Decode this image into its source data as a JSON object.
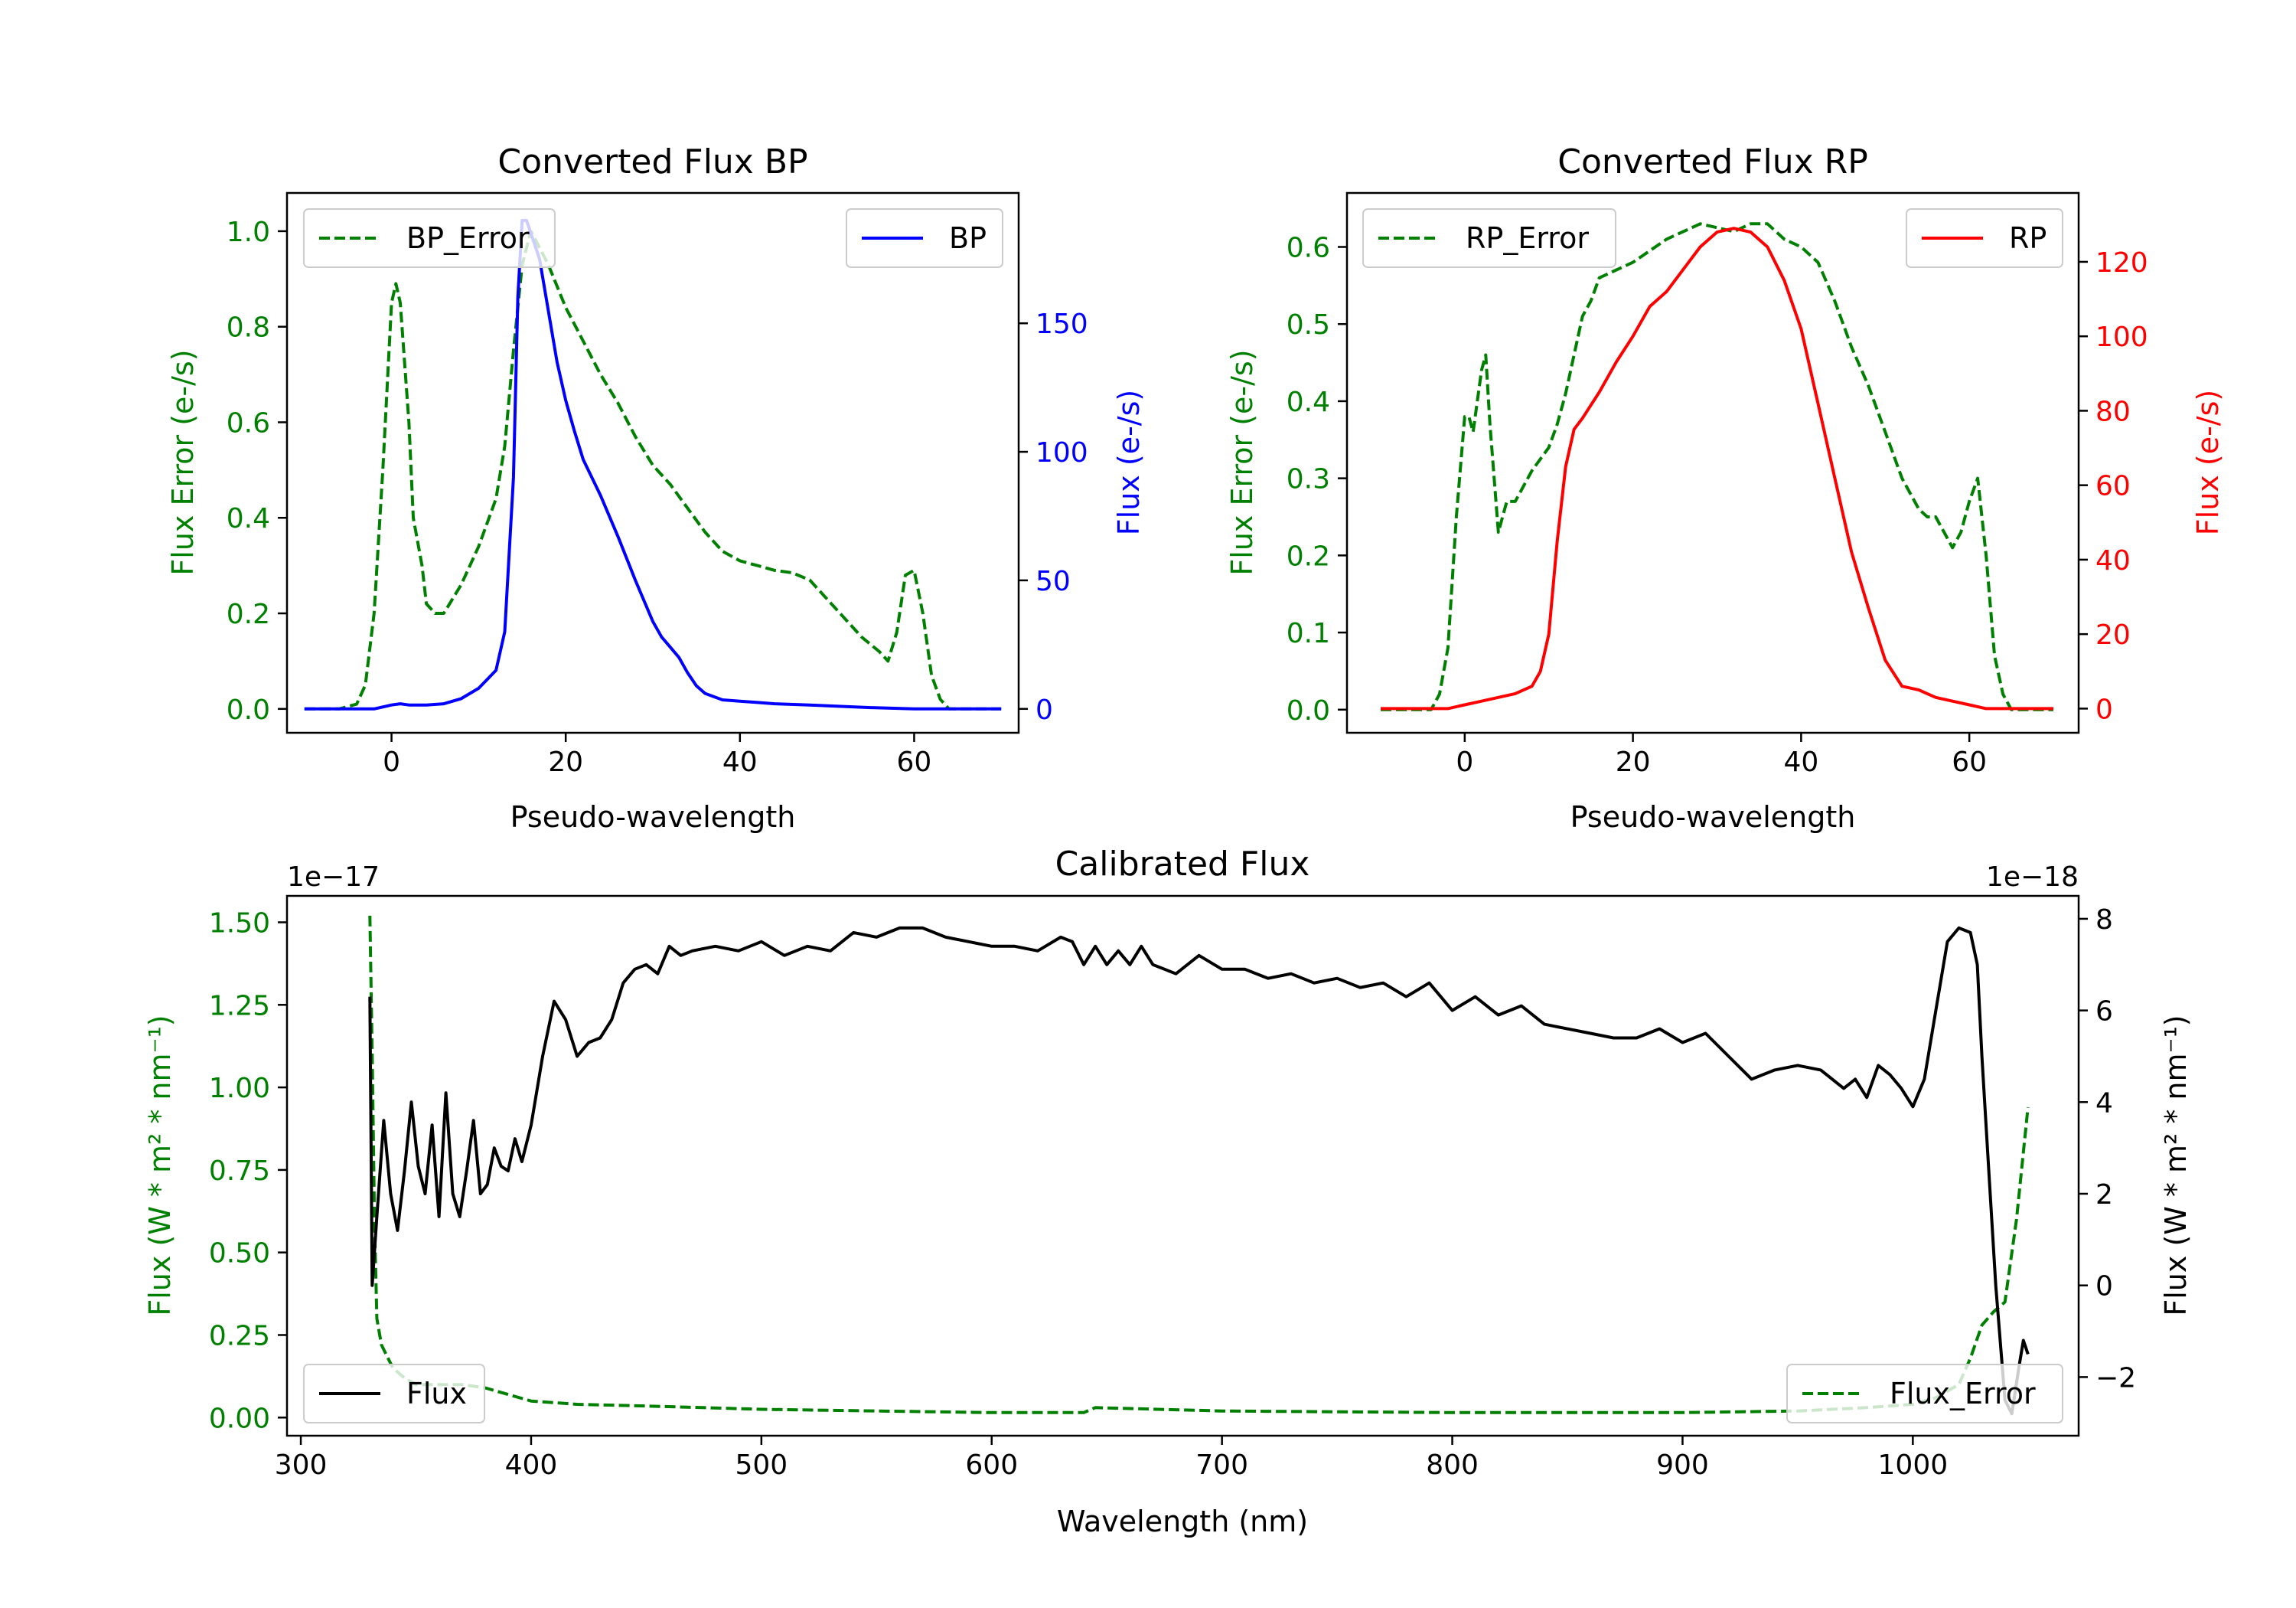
{
  "chart_data": [
    {
      "id": "bp",
      "type": "line",
      "title": "Converted Flux BP",
      "xlabel": "Pseudo-wavelength",
      "ylabel_left": "Flux Error (e-/s)",
      "ylabel_right": "Flux (e-/s)",
      "xlim": [
        -12,
        72
      ],
      "ylim_left": [
        -0.05,
        1.08
      ],
      "ylim_right": [
        -9.3,
        200.7
      ],
      "xticks": [
        0,
        20,
        40,
        60
      ],
      "yticks_left": [
        0.0,
        0.2,
        0.4,
        0.6,
        0.8,
        1.0
      ],
      "ytick_labels_left": [
        "0.0",
        "0.2",
        "0.4",
        "0.6",
        "0.8",
        "1.0"
      ],
      "yticks_right": [
        0,
        50,
        100,
        150
      ],
      "ytick_labels_right": [
        "0",
        "50",
        "100",
        "150"
      ],
      "left_color": "#008000",
      "right_color": "#0000ff",
      "series": [
        {
          "name": "BP_Error",
          "axis": "left",
          "style": "dashed",
          "color": "#008000",
          "x": [
            -10,
            -6,
            -4,
            -3,
            -2,
            -1,
            0,
            0.5,
            1,
            2,
            2.5,
            3,
            3.5,
            4,
            5,
            6,
            8,
            10,
            12,
            13,
            14,
            15,
            16,
            18,
            20,
            22,
            24,
            26,
            28,
            30,
            32,
            34,
            36,
            38,
            40,
            42,
            44,
            46,
            48,
            50,
            52,
            54,
            56,
            57,
            58,
            59,
            60,
            61,
            62,
            63,
            64,
            65,
            70
          ],
          "y": [
            0,
            0,
            0.01,
            0.05,
            0.2,
            0.5,
            0.85,
            0.89,
            0.85,
            0.6,
            0.4,
            0.35,
            0.3,
            0.22,
            0.2,
            0.2,
            0.26,
            0.34,
            0.44,
            0.55,
            0.75,
            0.93,
            1.0,
            0.93,
            0.84,
            0.77,
            0.7,
            0.64,
            0.57,
            0.51,
            0.47,
            0.42,
            0.37,
            0.33,
            0.31,
            0.3,
            0.29,
            0.285,
            0.27,
            0.23,
            0.19,
            0.15,
            0.12,
            0.1,
            0.16,
            0.28,
            0.29,
            0.2,
            0.07,
            0.02,
            0,
            0,
            0
          ]
        },
        {
          "name": "BP",
          "axis": "right",
          "style": "solid",
          "color": "#0000ff",
          "x": [
            -10,
            -5,
            -2,
            0,
            1,
            2,
            4,
            6,
            8,
            10,
            12,
            13,
            14,
            14.5,
            15,
            15.5,
            16,
            17,
            18,
            19,
            20,
            21,
            22,
            24,
            26,
            28,
            30,
            31,
            32,
            33,
            34,
            35,
            36,
            38,
            40,
            42,
            44,
            48,
            55,
            60,
            65,
            70
          ],
          "y": [
            0,
            0,
            0,
            1.5,
            2,
            1.5,
            1.5,
            2,
            4,
            8,
            15,
            30,
            90,
            160,
            190,
            190,
            185,
            175,
            155,
            135,
            120,
            108,
            97,
            83,
            67,
            50,
            34,
            28,
            24,
            20,
            14,
            9,
            6,
            3.5,
            3,
            2.5,
            2,
            1.5,
            0.5,
            0,
            0,
            0
          ]
        }
      ],
      "legend": [
        {
          "label": "BP_Error",
          "position": "upper-left"
        },
        {
          "label": "BP",
          "position": "upper-right"
        }
      ]
    },
    {
      "id": "rp",
      "type": "line",
      "title": "Converted Flux RP",
      "xlabel": "Pseudo-wavelength",
      "ylabel_left": "Flux Error (e-/s)",
      "ylabel_right": "Flux (e-/s)",
      "xlim": [
        -14,
        73
      ],
      "ylim_left": [
        -0.03,
        0.67
      ],
      "ylim_right": [
        -6.5,
        138.5
      ],
      "xticks": [
        0,
        20,
        40,
        60
      ],
      "yticks_left": [
        0.0,
        0.1,
        0.2,
        0.3,
        0.4,
        0.5,
        0.6
      ],
      "ytick_labels_left": [
        "0.0",
        "0.1",
        "0.2",
        "0.3",
        "0.4",
        "0.5",
        "0.6"
      ],
      "yticks_right": [
        0,
        20,
        40,
        60,
        80,
        100,
        120
      ],
      "ytick_labels_right": [
        "0",
        "20",
        "40",
        "60",
        "80",
        "100",
        "120"
      ],
      "left_color": "#008000",
      "right_color": "#ff0000",
      "series": [
        {
          "name": "RP_Error",
          "axis": "left",
          "style": "dashed",
          "color": "#008000",
          "x": [
            -10,
            -5,
            -4,
            -3,
            -2,
            -1,
            0,
            0.5,
            1,
            1.5,
            2,
            2.5,
            3,
            3.5,
            4,
            5,
            6,
            8,
            10,
            11,
            12,
            13,
            14,
            15,
            16,
            18,
            20,
            24,
            28,
            32,
            34,
            36,
            38,
            40,
            42,
            44,
            46,
            48,
            50,
            52,
            54,
            55,
            56,
            57,
            58,
            59,
            60,
            61,
            62,
            63,
            64,
            65,
            70
          ],
          "y": [
            0,
            0,
            0,
            0.02,
            0.08,
            0.25,
            0.38,
            0.38,
            0.36,
            0.4,
            0.44,
            0.46,
            0.37,
            0.3,
            0.23,
            0.27,
            0.27,
            0.31,
            0.34,
            0.37,
            0.41,
            0.46,
            0.51,
            0.53,
            0.56,
            0.57,
            0.58,
            0.61,
            0.63,
            0.62,
            0.63,
            0.63,
            0.61,
            0.6,
            0.58,
            0.53,
            0.47,
            0.42,
            0.36,
            0.3,
            0.26,
            0.25,
            0.25,
            0.23,
            0.21,
            0.23,
            0.27,
            0.3,
            0.2,
            0.07,
            0.02,
            0,
            0
          ]
        },
        {
          "name": "RP",
          "axis": "right",
          "style": "solid",
          "color": "#ff0000",
          "x": [
            -10,
            -2,
            0,
            2,
            4,
            6,
            8,
            9,
            10,
            11,
            12,
            13,
            14,
            16,
            18,
            20,
            22,
            24,
            26,
            28,
            30,
            32,
            34,
            36,
            38,
            40,
            42,
            44,
            46,
            48,
            50,
            52,
            54,
            56,
            58,
            60,
            62,
            64,
            66,
            70
          ],
          "y": [
            0,
            0,
            1,
            2,
            3,
            4,
            6,
            10,
            20,
            45,
            65,
            75,
            78,
            85,
            93,
            100,
            108,
            112,
            118,
            124,
            128,
            129,
            128,
            124,
            115,
            102,
            82,
            62,
            42,
            27,
            13,
            6,
            5,
            3,
            2,
            1,
            0,
            0,
            0,
            0
          ]
        }
      ],
      "legend": [
        {
          "label": "RP_Error",
          "position": "upper-left"
        },
        {
          "label": "RP",
          "position": "upper-right"
        }
      ]
    },
    {
      "id": "cal",
      "type": "line",
      "title": "Calibrated Flux",
      "xlabel": "Wavelength (nm)",
      "ylabel_left": "Flux (W * m² * nm⁻¹)",
      "ylabel_right": "Flux (W * m² * nm⁻¹)",
      "left_offset_label": "1e−17",
      "right_offset_label": "1e−18",
      "xlim": [
        294,
        1072
      ],
      "ylim_left": [
        -0.055,
        1.58
      ],
      "ylim_right": [
        -3.28,
        8.5
      ],
      "xticks": [
        300,
        400,
        500,
        600,
        700,
        800,
        900,
        1000
      ],
      "yticks_left": [
        0.0,
        0.25,
        0.5,
        0.75,
        1.0,
        1.25,
        1.5
      ],
      "ytick_labels_left": [
        "0.00",
        "0.25",
        "0.50",
        "0.75",
        "1.00",
        "1.25",
        "1.50"
      ],
      "yticks_right": [
        -2,
        0,
        2,
        4,
        6,
        8
      ],
      "ytick_labels_right": [
        "−2",
        "0",
        "2",
        "4",
        "6",
        "8"
      ],
      "left_color": "#008000",
      "right_color": "#000000",
      "series": [
        {
          "name": "Flux_Error",
          "axis": "left",
          "style": "dashed",
          "color": "#008000",
          "x": [
            330,
            331,
            332,
            333,
            335,
            340,
            345,
            350,
            360,
            370,
            380,
            390,
            400,
            420,
            450,
            500,
            550,
            600,
            640,
            645,
            700,
            800,
            900,
            950,
            980,
            1000,
            1010,
            1020,
            1025,
            1030,
            1035,
            1040,
            1045,
            1050
          ],
          "y": [
            1.52,
            1.1,
            0.6,
            0.3,
            0.22,
            0.15,
            0.12,
            0.1,
            0.1,
            0.1,
            0.09,
            0.07,
            0.05,
            0.04,
            0.035,
            0.025,
            0.02,
            0.015,
            0.015,
            0.03,
            0.02,
            0.015,
            0.015,
            0.02,
            0.03,
            0.04,
            0.06,
            0.1,
            0.18,
            0.28,
            0.32,
            0.35,
            0.6,
            0.94
          ]
        },
        {
          "name": "Flux",
          "axis": "right",
          "style": "solid",
          "color": "#000000",
          "x": [
            330,
            331,
            333,
            336,
            339,
            342,
            345,
            348,
            351,
            354,
            357,
            360,
            363,
            366,
            369,
            372,
            375,
            378,
            381,
            384,
            387,
            390,
            393,
            396,
            400,
            405,
            410,
            415,
            420,
            425,
            430,
            435,
            440,
            445,
            450,
            455,
            460,
            465,
            470,
            480,
            490,
            500,
            510,
            520,
            530,
            540,
            550,
            560,
            570,
            580,
            590,
            600,
            610,
            620,
            630,
            635,
            640,
            645,
            650,
            655,
            660,
            665,
            670,
            680,
            690,
            700,
            710,
            720,
            730,
            740,
            750,
            760,
            770,
            780,
            790,
            800,
            810,
            820,
            830,
            840,
            850,
            860,
            870,
            880,
            890,
            900,
            910,
            920,
            930,
            940,
            950,
            960,
            970,
            975,
            980,
            985,
            990,
            995,
            1000,
            1005,
            1010,
            1015,
            1020,
            1025,
            1028,
            1030,
            1033,
            1036,
            1040,
            1043,
            1046,
            1048,
            1050
          ],
          "y": [
            6.3,
            0,
            1.5,
            3.6,
            2.0,
            1.2,
            2.5,
            4.0,
            2.6,
            2.0,
            3.5,
            1.5,
            4.2,
            2.0,
            1.5,
            2.5,
            3.6,
            2.0,
            2.2,
            3.0,
            2.6,
            2.5,
            3.2,
            2.7,
            3.5,
            5.0,
            6.2,
            5.8,
            5.0,
            5.3,
            5.4,
            5.8,
            6.6,
            6.9,
            7.0,
            6.8,
            7.4,
            7.2,
            7.3,
            7.4,
            7.3,
            7.5,
            7.2,
            7.4,
            7.3,
            7.7,
            7.6,
            7.8,
            7.8,
            7.6,
            7.5,
            7.4,
            7.4,
            7.3,
            7.6,
            7.5,
            7.0,
            7.4,
            7.0,
            7.3,
            7.0,
            7.4,
            7.0,
            6.8,
            7.2,
            6.9,
            6.9,
            6.7,
            6.8,
            6.6,
            6.7,
            6.5,
            6.6,
            6.3,
            6.6,
            6.0,
            6.3,
            5.9,
            6.1,
            5.7,
            5.6,
            5.5,
            5.4,
            5.4,
            5.6,
            5.3,
            5.5,
            5.0,
            4.5,
            4.7,
            4.8,
            4.7,
            4.3,
            4.5,
            4.1,
            4.8,
            4.6,
            4.3,
            3.9,
            4.5,
            6.0,
            7.5,
            7.8,
            7.7,
            7.0,
            5.0,
            2.5,
            0,
            -2.5,
            -2.8,
            -1.8,
            -1.2,
            -1.5
          ]
        }
      ],
      "legend": [
        {
          "label": "Flux",
          "position": "lower-left"
        },
        {
          "label": "Flux_Error",
          "position": "lower-right"
        }
      ]
    }
  ]
}
